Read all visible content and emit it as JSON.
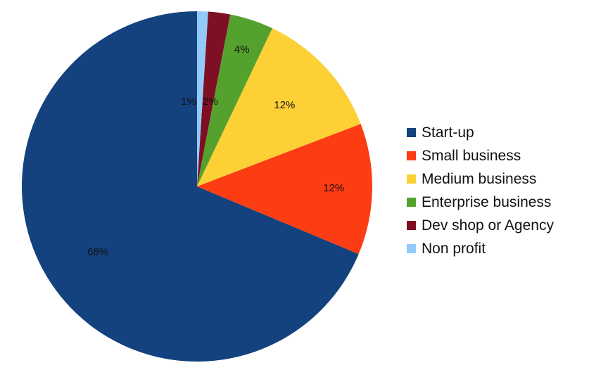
{
  "chart_data": {
    "type": "pie",
    "title": "",
    "start_angle": "12 o'clock",
    "direction": "counterclockwise",
    "legend_position": "right",
    "slices": [
      {
        "name": "Start-up",
        "value": 68,
        "label": "68%",
        "color": "#14427e"
      },
      {
        "name": "Small business",
        "value": 12,
        "label": "12%",
        "color": "#fc3c12"
      },
      {
        "name": "Medium business",
        "value": 12,
        "label": "12%",
        "color": "#fdd136"
      },
      {
        "name": "Enterprise business",
        "value": 4,
        "label": "4%",
        "color": "#55a12d"
      },
      {
        "name": "Dev shop or Agency",
        "value": 2,
        "label": "2%",
        "color": "#7e0f24"
      },
      {
        "name": "Non profit",
        "value": 1,
        "label": "1%",
        "color": "#92cbfa"
      }
    ]
  }
}
